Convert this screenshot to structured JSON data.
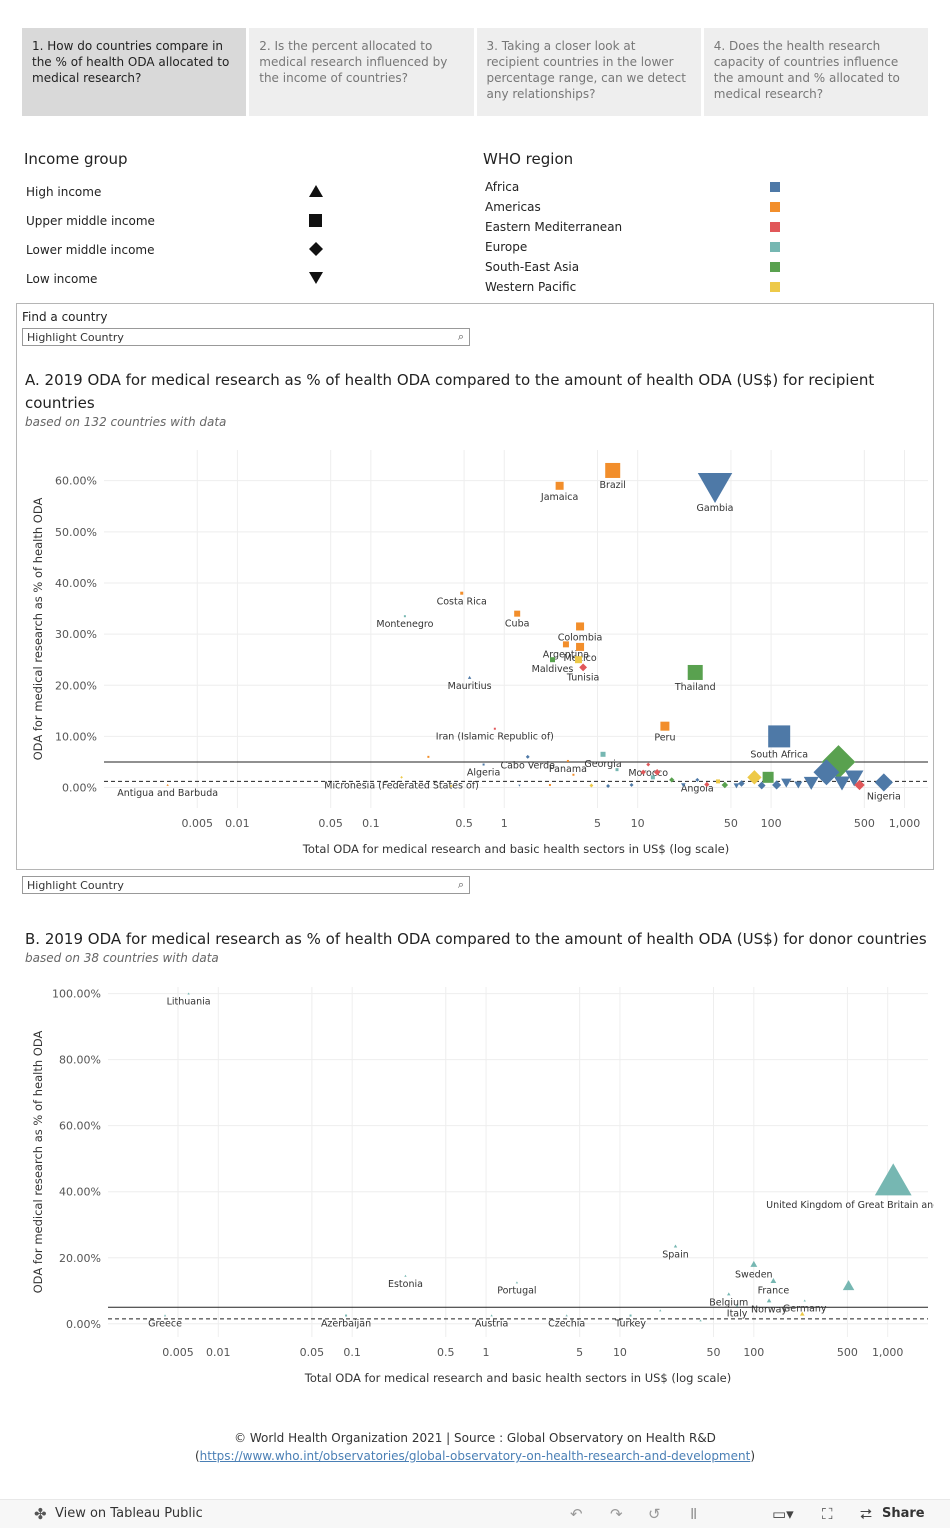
{
  "tabs": [
    {
      "label": "1. How do countries compare in the % of health ODA allocated to medical research?",
      "active": true
    },
    {
      "label": "2. Is the percent allocated to medical research influenced by the income of countries?",
      "active": false
    },
    {
      "label": "3. Taking a closer look at recipient countries in the lower percentage range, can we detect any relationships?",
      "active": false
    },
    {
      "label": "4. Does the health research capacity of countries influence the amount and % allocated to medical research?",
      "active": false
    }
  ],
  "income_legend": {
    "title": "Income group",
    "items": [
      {
        "label": "High income",
        "shape": "triangle-up"
      },
      {
        "label": "Upper middle income",
        "shape": "square"
      },
      {
        "label": "Lower middle income",
        "shape": "diamond"
      },
      {
        "label": "Low income",
        "shape": "triangle-down"
      }
    ]
  },
  "region_legend": {
    "title": "WHO region",
    "items": [
      {
        "label": "Africa",
        "color": "#4e79a7"
      },
      {
        "label": "Americas",
        "color": "#f28e2b"
      },
      {
        "label": "Eastern Mediterranean",
        "color": "#e15759"
      },
      {
        "label": "Europe",
        "color": "#76b7b2"
      },
      {
        "label": "South-East Asia",
        "color": "#59a14f"
      },
      {
        "label": "Western Pacific",
        "color": "#edc948"
      }
    ]
  },
  "search": {
    "find_label": "Find a country",
    "placeholder_a": "Highlight Country",
    "placeholder_b": "Highlight Country"
  },
  "chart_a": {
    "title": "A. 2019 ODA for medical research as % of health ODA  compared to the amount of health ODA (US$) for recipient countries",
    "subtitle": "based on 132 countries with data"
  },
  "chart_b": {
    "title": "B. 2019 ODA for medical research as % of health ODA compared to the amount of health ODA (US$) for donor countries",
    "subtitle": "based on 38 countries with data"
  },
  "footer": {
    "line1": "© World Health Organization 2021 | Source : Global Observatory on Health R&D",
    "paren_open": "(",
    "link": "https://www.who.int/observatories/global-observatory-on-health-research-and-development",
    "paren_close": ")"
  },
  "toolbar": {
    "view_label": "View on Tableau Public",
    "share_label": "Share"
  },
  "chart_data": [
    {
      "type": "scatter",
      "xlabel": "Total ODA for medical research and basic health sectors in US$ (log scale)",
      "ylabel": "ODA for medical research as % of health ODA",
      "x_scale": "log",
      "xlim": [
        0.001,
        1500
      ],
      "ylim": [
        -4,
        66
      ],
      "x_ticks": [
        0.005,
        0.01,
        0.05,
        0.1,
        0.5,
        1,
        5,
        10,
        50,
        100,
        500,
        1000
      ],
      "x_tick_labels": [
        "0.005",
        "0.01",
        "0.05",
        "0.1",
        "0.5",
        "1",
        "5",
        "10",
        "50",
        "100",
        "500",
        "1,000"
      ],
      "y_ticks": [
        0,
        10,
        20,
        30,
        40,
        50,
        60
      ],
      "y_tick_labels": [
        "0.00%",
        "10.00%",
        "20.00%",
        "30.00%",
        "40.00%",
        "50.00%",
        "60.00%"
      ],
      "ref_lines": [
        {
          "y": 5,
          "style": "solid"
        },
        {
          "y": 1.2,
          "style": "dashed"
        }
      ],
      "grid": true,
      "points": [
        {
          "x": 6.5,
          "y": 62,
          "label": "Brazil",
          "region": "Americas",
          "income": "square",
          "size": 15
        },
        {
          "x": 2.6,
          "y": 59,
          "label": "Jamaica",
          "region": "Americas",
          "income": "square",
          "size": 8
        },
        {
          "x": 38,
          "y": 59,
          "label": "Gambia",
          "region": "Africa",
          "income": "triangle-down",
          "size": 30
        },
        {
          "x": 0.48,
          "y": 38,
          "label": "Costa Rica",
          "region": "Americas",
          "income": "square",
          "size": 3
        },
        {
          "x": 0.18,
          "y": 33.5,
          "label": "Montenegro",
          "region": "Europe",
          "income": "square",
          "size": 2
        },
        {
          "x": 1.25,
          "y": 34,
          "label": "Cuba",
          "region": "Americas",
          "income": "square",
          "size": 6
        },
        {
          "x": 3.7,
          "y": 31.5,
          "label": "Colombia",
          "region": "Americas",
          "income": "square",
          "size": 8
        },
        {
          "x": 2.9,
          "y": 28,
          "label": "Argentina",
          "region": "Americas",
          "income": "square",
          "size": 6
        },
        {
          "x": 3.7,
          "y": 27.5,
          "label": "Mexico",
          "region": "Americas",
          "income": "square",
          "size": 8
        },
        {
          "x": 2.3,
          "y": 25,
          "label": "Maldives",
          "region": "South-East Asia",
          "income": "square",
          "size": 5
        },
        {
          "x": 3.6,
          "y": 25,
          "label": "",
          "region": "Western Pacific",
          "income": "square",
          "size": 7
        },
        {
          "x": 3.9,
          "y": 23.5,
          "label": "Tunisia",
          "region": "Eastern Mediterranean",
          "income": "diamond",
          "size": 6
        },
        {
          "x": 27,
          "y": 22.5,
          "label": "Thailand",
          "region": "South-East Asia",
          "income": "square",
          "size": 15
        },
        {
          "x": 0.55,
          "y": 21.5,
          "label": "Mauritius",
          "region": "Africa",
          "income": "triangle-up",
          "size": 3
        },
        {
          "x": 16,
          "y": 12,
          "label": "Peru",
          "region": "Americas",
          "income": "square",
          "size": 9
        },
        {
          "x": 0.85,
          "y": 11.5,
          "label": "Iran (Islamic Republic of)",
          "region": "Eastern Mediterranean",
          "income": "square",
          "size": 2
        },
        {
          "x": 115,
          "y": 10,
          "label": "South Africa",
          "region": "Africa",
          "income": "square",
          "size": 22
        },
        {
          "x": 5.5,
          "y": 6.5,
          "label": "Georgia",
          "region": "Europe",
          "income": "square",
          "size": 5
        },
        {
          "x": 1.5,
          "y": 6,
          "label": "Cabo Verde",
          "region": "Africa",
          "income": "diamond",
          "size": 3
        },
        {
          "x": 3.0,
          "y": 5.2,
          "label": "Panama",
          "region": "Americas",
          "income": "square",
          "size": 2
        },
        {
          "x": 12,
          "y": 4.5,
          "label": "Morocco",
          "region": "Eastern Mediterranean",
          "income": "diamond",
          "size": 3
        },
        {
          "x": 0.7,
          "y": 4.5,
          "label": "Algeria",
          "region": "Africa",
          "income": "square",
          "size": 2
        },
        {
          "x": 0.17,
          "y": 2,
          "label": "Micronesia (Federated States of)",
          "region": "Western Pacific",
          "income": "diamond",
          "size": 2
        },
        {
          "x": 0.003,
          "y": 0.5,
          "label": "Antigua and Barbuda",
          "region": "Americas",
          "income": "triangle-up",
          "size": 2
        },
        {
          "x": 28,
          "y": 1.5,
          "label": "Angola",
          "region": "Africa",
          "income": "diamond",
          "size": 3
        },
        {
          "x": 700,
          "y": 1,
          "label": "Nigeria",
          "region": "Africa",
          "income": "diamond",
          "size": 14
        },
        {
          "x": 320,
          "y": 5,
          "label": "",
          "region": "South-East Asia",
          "income": "diamond",
          "size": 26
        },
        {
          "x": 260,
          "y": 3,
          "label": "",
          "region": "Africa",
          "income": "diamond",
          "size": 20
        },
        {
          "x": 420,
          "y": 2,
          "label": "",
          "region": "Africa",
          "income": "triangle-down",
          "size": 16
        },
        {
          "x": 340,
          "y": 1,
          "label": "",
          "region": "Africa",
          "income": "triangle-down",
          "size": 14
        },
        {
          "x": 200,
          "y": 1,
          "label": "",
          "region": "Africa",
          "income": "triangle-down",
          "size": 13
        },
        {
          "x": 460,
          "y": 0.5,
          "label": "",
          "region": "Eastern Mediterranean",
          "income": "diamond",
          "size": 8
        },
        {
          "x": 95,
          "y": 2,
          "label": "",
          "region": "South-East Asia",
          "income": "square",
          "size": 11
        },
        {
          "x": 75,
          "y": 2,
          "label": "",
          "region": "Western Pacific",
          "income": "diamond",
          "size": 11
        },
        {
          "x": 130,
          "y": 1,
          "label": "",
          "region": "Africa",
          "income": "triangle-down",
          "size": 9
        },
        {
          "x": 160,
          "y": 0.6,
          "label": "",
          "region": "Africa",
          "income": "triangle-down",
          "size": 7
        },
        {
          "x": 110,
          "y": 0.5,
          "label": "",
          "region": "Africa",
          "income": "diamond",
          "size": 7
        },
        {
          "x": 60,
          "y": 0.8,
          "label": "",
          "region": "Africa",
          "income": "diamond",
          "size": 5
        },
        {
          "x": 45,
          "y": 0.5,
          "label": "",
          "region": "South-East Asia",
          "income": "diamond",
          "size": 5
        },
        {
          "x": 11,
          "y": 3,
          "label": "",
          "region": "Eastern Mediterranean",
          "income": "diamond",
          "size": 4
        },
        {
          "x": 14,
          "y": 3,
          "label": "",
          "region": "Eastern Mediterranean",
          "income": "diamond",
          "size": 5
        },
        {
          "x": 13,
          "y": 2,
          "label": "",
          "region": "Europe",
          "income": "square",
          "size": 4
        },
        {
          "x": 18,
          "y": 1.5,
          "label": "",
          "region": "South-East Asia",
          "income": "diamond",
          "size": 4
        },
        {
          "x": 7,
          "y": 3.5,
          "label": "",
          "region": "Europe",
          "income": "square",
          "size": 3
        },
        {
          "x": 0.27,
          "y": 6,
          "label": "",
          "region": "Americas",
          "income": "square",
          "size": 2
        },
        {
          "x": 22,
          "y": 0.5,
          "label": "",
          "region": "Africa",
          "income": "triangle-down",
          "size": 4
        },
        {
          "x": 33,
          "y": 0.6,
          "label": "",
          "region": "Eastern Mediterranean",
          "income": "diamond",
          "size": 4
        },
        {
          "x": 55,
          "y": 0.4,
          "label": "",
          "region": "Africa",
          "income": "triangle-down",
          "size": 5
        },
        {
          "x": 9,
          "y": 0.5,
          "label": "",
          "region": "Africa",
          "income": "diamond",
          "size": 3
        },
        {
          "x": 4.5,
          "y": 0.4,
          "label": "",
          "region": "Western Pacific",
          "income": "diamond",
          "size": 3
        },
        {
          "x": 2.2,
          "y": 0.5,
          "label": "",
          "region": "Americas",
          "income": "square",
          "size": 2
        },
        {
          "x": 1.3,
          "y": 0.4,
          "label": "",
          "region": "Africa",
          "income": "triangle-down",
          "size": 2
        },
        {
          "x": 0.4,
          "y": 0.3,
          "label": "",
          "region": "Western Pacific",
          "income": "diamond",
          "size": 2
        },
        {
          "x": 6,
          "y": 0.3,
          "label": "",
          "region": "Africa",
          "income": "diamond",
          "size": 3
        },
        {
          "x": 40,
          "y": 1.2,
          "label": "",
          "region": "Western Pacific",
          "income": "square",
          "size": 4
        },
        {
          "x": 85,
          "y": 0.4,
          "label": "",
          "region": "Africa",
          "income": "diamond",
          "size": 6
        },
        {
          "x": 3.3,
          "y": 2.5,
          "label": "",
          "region": "Americas",
          "income": "square",
          "size": 2
        }
      ]
    },
    {
      "type": "scatter",
      "xlabel": "Total ODA for medical research and basic health sectors in US$ (log scale)",
      "ylabel": "ODA for medical research as % of health ODA",
      "x_scale": "log",
      "xlim": [
        0.0015,
        2000
      ],
      "ylim": [
        -4,
        102
      ],
      "x_ticks": [
        0.005,
        0.01,
        0.05,
        0.1,
        0.5,
        1,
        5,
        10,
        50,
        100,
        500,
        1000
      ],
      "x_tick_labels": [
        "0.005",
        "0.01",
        "0.05",
        "0.1",
        "0.5",
        "1",
        "5",
        "10",
        "50",
        "100",
        "500",
        "1,000"
      ],
      "y_ticks": [
        0,
        20,
        40,
        60,
        80,
        100
      ],
      "y_tick_labels": [
        "0.00%",
        "20.00%",
        "40.00%",
        "60.00%",
        "80.00%",
        "100.00%"
      ],
      "ref_lines": [
        {
          "y": 5,
          "style": "solid"
        },
        {
          "y": 1.5,
          "style": "dashed"
        }
      ],
      "grid": true,
      "points": [
        {
          "x": 0.006,
          "y": 100,
          "label": "Lithuania",
          "region": "Europe",
          "income": "triangle-up",
          "size": 2
        },
        {
          "x": 1100,
          "y": 43,
          "label": "United Kingdom of Great Britain and Northern Ireland",
          "region": "Europe",
          "income": "triangle-up",
          "size": 32
        },
        {
          "x": 26,
          "y": 23.5,
          "label": "Spain",
          "region": "Europe",
          "income": "triangle-up",
          "size": 3
        },
        {
          "x": 100,
          "y": 18,
          "label": "Sweden",
          "region": "Europe",
          "income": "triangle-up",
          "size": 6
        },
        {
          "x": 510,
          "y": 11.5,
          "label": "",
          "region": "Europe",
          "income": "triangle-up",
          "size": 10
        },
        {
          "x": 140,
          "y": 13,
          "label": "France",
          "region": "Europe",
          "income": "triangle-up",
          "size": 5
        },
        {
          "x": 0.25,
          "y": 14.5,
          "label": "Estonia",
          "region": "Europe",
          "income": "triangle-up",
          "size": 2
        },
        {
          "x": 1.7,
          "y": 12.5,
          "label": "Portugal",
          "region": "Europe",
          "income": "triangle-up",
          "size": 2
        },
        {
          "x": 65,
          "y": 9,
          "label": "Belgium",
          "region": "Europe",
          "income": "triangle-up",
          "size": 3
        },
        {
          "x": 130,
          "y": 7,
          "label": "Norway",
          "region": "Europe",
          "income": "triangle-up",
          "size": 4
        },
        {
          "x": 240,
          "y": 7,
          "label": "Germany",
          "region": "Europe",
          "income": "triangle-up",
          "size": 2
        },
        {
          "x": 230,
          "y": 3,
          "label": "",
          "region": "Western Pacific",
          "income": "triangle-up",
          "size": 4
        },
        {
          "x": 75,
          "y": 5.5,
          "label": "Italy",
          "region": "Europe",
          "income": "triangle-up",
          "size": 2
        },
        {
          "x": 0.004,
          "y": 2.5,
          "label": "Greece",
          "region": "Europe",
          "income": "triangle-up",
          "size": 2
        },
        {
          "x": 0.09,
          "y": 2.5,
          "label": "Azerbaijan",
          "region": "Europe",
          "income": "square",
          "size": 2
        },
        {
          "x": 1.1,
          "y": 2.5,
          "label": "Austria",
          "region": "Europe",
          "income": "triangle-up",
          "size": 2
        },
        {
          "x": 4,
          "y": 2.5,
          "label": "Czechia",
          "region": "Europe",
          "income": "triangle-up",
          "size": 2
        },
        {
          "x": 12,
          "y": 2.5,
          "label": "Turkey",
          "region": "Europe",
          "income": "square",
          "size": 2
        },
        {
          "x": 20,
          "y": 4,
          "label": "",
          "region": "Europe",
          "income": "triangle-up",
          "size": 2
        },
        {
          "x": 40,
          "y": 1,
          "label": "",
          "region": "Europe",
          "income": "triangle-up",
          "size": 2
        }
      ]
    }
  ]
}
